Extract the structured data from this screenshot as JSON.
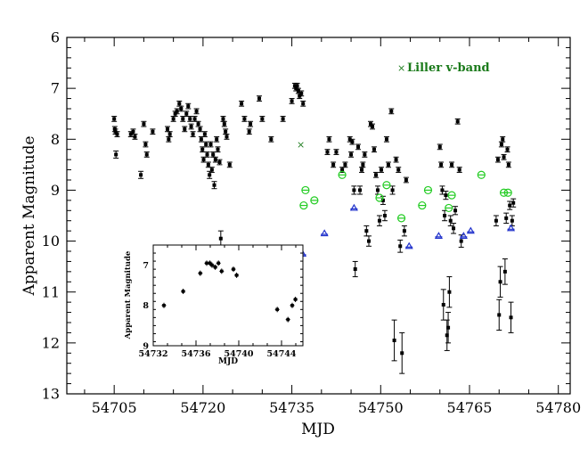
{
  "chart_data": [
    {
      "type": "scatter",
      "xlabel": "MJD",
      "ylabel": "Apparent Magnitude",
      "xlim": [
        54697,
        54782
      ],
      "ylim": [
        13,
        6
      ],
      "y_inverted": true,
      "xticks": [
        "54705",
        "54720",
        "54735",
        "54750",
        "54765",
        "54780"
      ],
      "yticks": [
        "6",
        "7",
        "8",
        "9",
        "10",
        "11",
        "12",
        "13"
      ],
      "legend": {
        "label": "Liller v-band",
        "marker": "x",
        "color": "#1a7a1a",
        "placement": "top-right"
      },
      "colors": {
        "main": "#000000",
        "green": "#22cc22",
        "blue": "#2233cc",
        "liller": "#1a7a1a"
      },
      "series": [
        {
          "marker": "filled-square",
          "color": "#000000",
          "points": [
            [
              54705.0,
              7.6,
              0.05
            ],
            [
              54705.1,
              7.8,
              0.05
            ],
            [
              54705.2,
              7.85,
              0.05
            ],
            [
              54705.3,
              8.3,
              0.07
            ],
            [
              54705.5,
              7.9,
              0.05
            ],
            [
              54707.8,
              7.9,
              0.05
            ],
            [
              54708.2,
              7.85,
              0.05
            ],
            [
              54708.5,
              7.95,
              0.05
            ],
            [
              54709.5,
              8.7,
              0.07
            ],
            [
              54710.0,
              7.7,
              0.05
            ],
            [
              54710.3,
              8.1,
              0.05
            ],
            [
              54710.5,
              8.3,
              0.05
            ],
            [
              54711.5,
              7.85,
              0.05
            ],
            [
              54714.0,
              7.8,
              0.05
            ],
            [
              54714.2,
              8.0,
              0.05
            ],
            [
              54714.4,
              7.9,
              0.05
            ],
            [
              54715.0,
              7.6,
              0.05
            ],
            [
              54715.3,
              7.5,
              0.05
            ],
            [
              54715.6,
              7.45,
              0.05
            ],
            [
              54716.0,
              7.3,
              0.05
            ],
            [
              54716.3,
              7.4,
              0.05
            ],
            [
              54716.6,
              7.6,
              0.05
            ],
            [
              54716.9,
              7.8,
              0.05
            ],
            [
              54717.2,
              7.5,
              0.05
            ],
            [
              54717.5,
              7.35,
              0.05
            ],
            [
              54717.8,
              7.6,
              0.05
            ],
            [
              54718.0,
              7.75,
              0.05
            ],
            [
              54718.3,
              7.9,
              0.05
            ],
            [
              54718.6,
              7.6,
              0.05
            ],
            [
              54718.9,
              7.45,
              0.05
            ],
            [
              54719.2,
              7.7,
              0.05
            ],
            [
              54719.5,
              7.8,
              0.05
            ],
            [
              54719.7,
              8.0,
              0.05
            ],
            [
              54719.9,
              8.2,
              0.05
            ],
            [
              54720.1,
              8.4,
              0.05
            ],
            [
              54720.3,
              7.9,
              0.05
            ],
            [
              54720.5,
              8.1,
              0.05
            ],
            [
              54720.7,
              8.3,
              0.05
            ],
            [
              54720.9,
              8.5,
              0.05
            ],
            [
              54721.1,
              8.7,
              0.07
            ],
            [
              54721.3,
              8.1,
              0.05
            ],
            [
              54721.5,
              8.6,
              0.05
            ],
            [
              54721.7,
              8.3,
              0.05
            ],
            [
              54721.9,
              8.9,
              0.07
            ],
            [
              54722.1,
              8.4,
              0.05
            ],
            [
              54722.3,
              8.0,
              0.05
            ],
            [
              54722.5,
              8.2,
              0.05
            ],
            [
              54722.8,
              8.45,
              0.05
            ],
            [
              54723.0,
              9.95,
              0.15
            ],
            [
              54723.4,
              7.6,
              0.05
            ],
            [
              54723.6,
              7.7,
              0.05
            ],
            [
              54723.8,
              7.85,
              0.05
            ],
            [
              54724.0,
              7.95,
              0.05
            ],
            [
              54724.5,
              8.5,
              0.05
            ],
            [
              54726.5,
              7.3,
              0.05
            ],
            [
              54727.0,
              7.6,
              0.05
            ],
            [
              54727.8,
              7.85,
              0.05
            ],
            [
              54728.0,
              7.7,
              0.05
            ],
            [
              54729.5,
              7.2,
              0.05
            ],
            [
              54730.0,
              7.6,
              0.05
            ],
            [
              54731.5,
              8.0,
              0.05
            ],
            [
              54733.5,
              7.6,
              0.05
            ],
            [
              54735.0,
              7.25,
              0.05
            ],
            [
              54735.5,
              6.95,
              0.05
            ],
            [
              54735.7,
              7.0,
              0.05
            ],
            [
              54735.9,
              6.95,
              0.05
            ],
            [
              54736.1,
              7.05,
              0.05
            ],
            [
              54736.3,
              7.15,
              0.05
            ],
            [
              54736.6,
              7.1,
              0.05
            ],
            [
              54736.9,
              7.3,
              0.05
            ],
            [
              54741.0,
              8.25,
              0.05
            ],
            [
              54741.3,
              8.0,
              0.05
            ],
            [
              54742.0,
              8.5,
              0.05
            ],
            [
              54742.5,
              8.25,
              0.05
            ],
            [
              54743.5,
              8.6,
              0.05
            ],
            [
              54744.0,
              8.5,
              0.05
            ],
            [
              54744.8,
              8.0,
              0.05
            ],
            [
              54745.0,
              8.3,
              0.05
            ],
            [
              54745.2,
              8.05,
              0.05
            ],
            [
              54745.5,
              9.0,
              0.08
            ],
            [
              54745.7,
              10.55,
              0.15
            ],
            [
              54746.2,
              8.15,
              0.05
            ],
            [
              54746.5,
              9.0,
              0.08
            ],
            [
              54746.8,
              8.6,
              0.05
            ],
            [
              54747.0,
              8.5,
              0.05
            ],
            [
              54747.3,
              8.3,
              0.05
            ],
            [
              54747.6,
              9.8,
              0.1
            ],
            [
              54748.0,
              10.0,
              0.1
            ],
            [
              54748.3,
              7.7,
              0.05
            ],
            [
              54748.6,
              7.75,
              0.05
            ],
            [
              54748.9,
              8.2,
              0.05
            ],
            [
              54749.2,
              8.7,
              0.05
            ],
            [
              54749.5,
              9.0,
              0.08
            ],
            [
              54749.8,
              9.6,
              0.1
            ],
            [
              54750.1,
              8.6,
              0.05
            ],
            [
              54750.4,
              9.2,
              0.08
            ],
            [
              54750.7,
              9.5,
              0.1
            ],
            [
              54751.0,
              8.0,
              0.05
            ],
            [
              54751.3,
              8.5,
              0.05
            ],
            [
              54751.8,
              7.45,
              0.05
            ],
            [
              54752.0,
              9.0,
              0.08
            ],
            [
              54752.3,
              11.95,
              0.4
            ],
            [
              54752.6,
              8.4,
              0.05
            ],
            [
              54753.0,
              8.6,
              0.05
            ],
            [
              54753.3,
              10.1,
              0.12
            ],
            [
              54753.6,
              12.2,
              0.4
            ],
            [
              54754.0,
              9.8,
              0.1
            ],
            [
              54754.3,
              8.8,
              0.05
            ],
            [
              54760.0,
              8.15,
              0.05
            ],
            [
              54760.2,
              8.5,
              0.05
            ],
            [
              54760.4,
              9.0,
              0.08
            ],
            [
              54760.6,
              11.25,
              0.3
            ],
            [
              54760.8,
              9.5,
              0.1
            ],
            [
              54761.0,
              9.1,
              0.08
            ],
            [
              54761.2,
              11.85,
              0.3
            ],
            [
              54761.4,
              11.7,
              0.3
            ],
            [
              54761.6,
              11.0,
              0.3
            ],
            [
              54761.8,
              9.6,
              0.1
            ],
            [
              54762.0,
              8.5,
              0.05
            ],
            [
              54762.3,
              9.75,
              0.1
            ],
            [
              54762.6,
              9.4,
              0.08
            ],
            [
              54763.0,
              7.65,
              0.05
            ],
            [
              54763.3,
              8.6,
              0.05
            ],
            [
              54763.6,
              10.0,
              0.12
            ],
            [
              54769.5,
              9.6,
              0.1
            ],
            [
              54769.8,
              8.4,
              0.05
            ],
            [
              54770.0,
              11.45,
              0.3
            ],
            [
              54770.2,
              10.8,
              0.3
            ],
            [
              54770.4,
              8.1,
              0.05
            ],
            [
              54770.6,
              8.0,
              0.05
            ],
            [
              54770.8,
              8.35,
              0.05
            ],
            [
              54771.0,
              10.6,
              0.25
            ],
            [
              54771.2,
              9.55,
              0.1
            ],
            [
              54771.4,
              8.2,
              0.05
            ],
            [
              54771.6,
              8.5,
              0.05
            ],
            [
              54771.8,
              9.3,
              0.08
            ],
            [
              54772.0,
              11.5,
              0.3
            ],
            [
              54772.2,
              9.6,
              0.1
            ],
            [
              54772.4,
              9.25,
              0.08
            ]
          ]
        },
        {
          "marker": "open-circle",
          "color": "#22cc22",
          "points": [
            [
              54737.0,
              9.3
            ],
            [
              54737.3,
              9.0
            ],
            [
              54738.8,
              9.2
            ],
            [
              54743.5,
              8.7
            ],
            [
              54749.8,
              9.15
            ],
            [
              54751.0,
              8.9
            ],
            [
              54753.5,
              9.55
            ],
            [
              54757.0,
              9.3
            ],
            [
              54758.0,
              9.0
            ],
            [
              54761.5,
              9.35
            ],
            [
              54762.0,
              9.1
            ],
            [
              54767.0,
              8.7
            ],
            [
              54770.8,
              9.05
            ],
            [
              54771.5,
              9.05
            ]
          ]
        },
        {
          "marker": "open-triangle",
          "color": "#2233cc",
          "points": [
            [
              54736.8,
              10.25
            ],
            [
              54740.5,
              9.85
            ],
            [
              54745.5,
              9.35
            ],
            [
              54754.8,
              10.1
            ],
            [
              54759.8,
              9.9
            ],
            [
              54764.0,
              9.9
            ],
            [
              54765.2,
              9.8
            ],
            [
              54772.0,
              9.75
            ]
          ]
        },
        {
          "name": "Liller v-band",
          "marker": "x",
          "color": "#1a7a1a",
          "points": [
            [
              54736.5,
              8.1
            ]
          ]
        }
      ]
    },
    {
      "type": "scatter",
      "inset": true,
      "xlabel": "MJD",
      "ylabel": "Apparent Magnitude",
      "xlim": [
        54732,
        54746
      ],
      "ylim": [
        9,
        6.5
      ],
      "y_inverted": true,
      "xticks": [
        "54732",
        "54736",
        "54740",
        "54744"
      ],
      "yticks": [
        "7",
        "8",
        "9"
      ],
      "points": [
        [
          54733.0,
          8.0
        ],
        [
          54734.8,
          7.65
        ],
        [
          54736.4,
          7.2
        ],
        [
          54737.0,
          6.95
        ],
        [
          54737.3,
          6.95
        ],
        [
          54737.5,
          7.0
        ],
        [
          54737.8,
          7.05
        ],
        [
          54738.1,
          6.95
        ],
        [
          54738.4,
          7.15
        ],
        [
          54739.5,
          7.1
        ],
        [
          54739.8,
          7.25
        ],
        [
          54743.6,
          8.1
        ],
        [
          54744.6,
          8.35
        ],
        [
          54745.0,
          8.0
        ],
        [
          54745.3,
          7.85
        ]
      ]
    }
  ]
}
